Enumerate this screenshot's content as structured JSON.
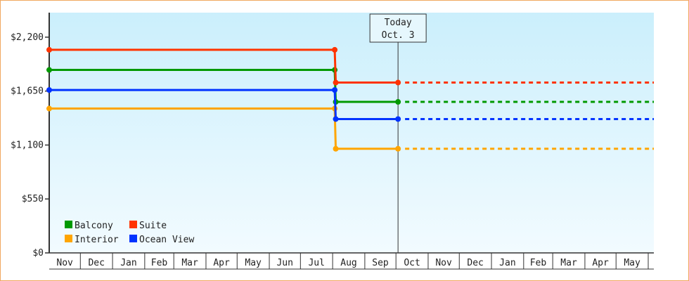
{
  "chart_data": {
    "type": "line",
    "step": true,
    "y_ticks": [
      "$0",
      "$550",
      "$1,100",
      "$1,650",
      "$2,200"
    ],
    "y_tick_values": [
      0,
      550,
      1100,
      1650,
      2200
    ],
    "ylim": [
      0,
      2450
    ],
    "x_ticks": [
      "Nov",
      "Dec",
      "Jan",
      "Feb",
      "Mar",
      "Apr",
      "May",
      "Jun",
      "Jul",
      "Aug",
      "Sep",
      "Oct",
      "Nov",
      "Dec",
      "Jan",
      "Feb",
      "Mar",
      "Apr",
      "May"
    ],
    "today_label": [
      "Today",
      "Oct. 3"
    ],
    "today": "Oct 3",
    "grid": false,
    "legend_placement": "bottom-left",
    "series": [
      {
        "name": "Balcony",
        "color": "#009900",
        "points": [
          [
            "Nov 1",
            1866
          ],
          [
            "Aug 3",
            1866
          ],
          [
            "Aug 4",
            1540
          ],
          [
            "Oct 3",
            1540
          ]
        ],
        "projected": 1540
      },
      {
        "name": "Suite",
        "color": "#ff3300",
        "points": [
          [
            "Nov 1",
            2071
          ],
          [
            "Aug 3",
            2071
          ],
          [
            "Aug 4",
            1737
          ],
          [
            "Oct 3",
            1737
          ]
        ],
        "projected": 1737
      },
      {
        "name": "Interior",
        "color": "#ffa500",
        "points": [
          [
            "Nov 1",
            1472
          ],
          [
            "Aug 3",
            1472
          ],
          [
            "Aug 4",
            1062
          ],
          [
            "Oct 3",
            1062
          ]
        ],
        "projected": 1062
      },
      {
        "name": "Ocean View",
        "color": "#0033ff",
        "points": [
          [
            "Nov 1",
            1661
          ],
          [
            "Aug 3",
            1661
          ],
          [
            "Aug 4",
            1365
          ],
          [
            "Oct 3",
            1365
          ]
        ],
        "projected": 1365
      }
    ],
    "colors": {
      "background_top": "#cbeffc",
      "background_bottom": "#f2fbff",
      "frame": "#f0a860"
    }
  }
}
